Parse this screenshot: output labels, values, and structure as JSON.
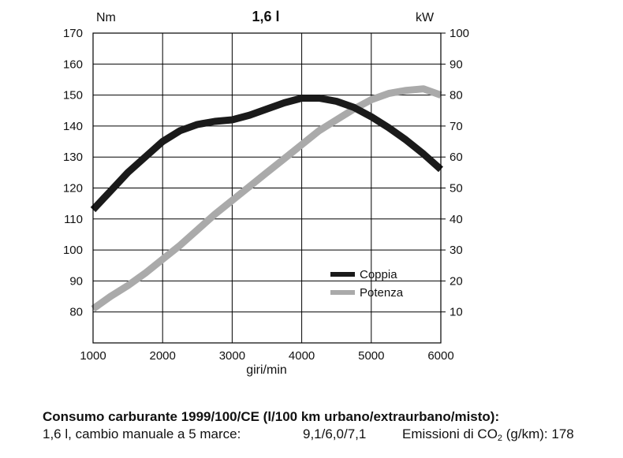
{
  "chart_data": {
    "type": "line",
    "title": "1,6 l",
    "xlabel": "giri/min",
    "ylabel_left": "Nm",
    "ylabel_right": "kW",
    "xlim": [
      1000,
      6000
    ],
    "ylim_left": [
      70,
      170
    ],
    "ylim_right": [
      0,
      100
    ],
    "x_ticks": [
      1000,
      2000,
      3000,
      4000,
      5000,
      6000
    ],
    "y_left_ticks": [
      80,
      90,
      100,
      110,
      120,
      130,
      140,
      150,
      160,
      170
    ],
    "y_right_ticks": [
      10,
      20,
      30,
      40,
      50,
      60,
      70,
      80,
      90,
      100
    ],
    "grid": true,
    "legend": "center-right",
    "series": [
      {
        "name": "Coppia",
        "axis": "left",
        "color": "#1a1a1a",
        "x": [
          1000,
          1250,
          1500,
          1750,
          2000,
          2250,
          2500,
          2750,
          3000,
          3250,
          3500,
          3750,
          4000,
          4250,
          4500,
          4750,
          5000,
          5250,
          5500,
          5750,
          6000
        ],
        "y": [
          113,
          119,
          125,
          130,
          135,
          138.5,
          140.5,
          141.5,
          142,
          143.5,
          145.5,
          147.5,
          149,
          149,
          148,
          146,
          143,
          139.5,
          135.5,
          131,
          126
        ]
      },
      {
        "name": "Potenza",
        "axis": "right",
        "color": "#aaaaaa",
        "x": [
          1000,
          1250,
          1500,
          1750,
          2000,
          2250,
          2500,
          2750,
          3000,
          3250,
          3500,
          3750,
          4000,
          4250,
          4500,
          4750,
          5000,
          5250,
          5500,
          5750,
          6000
        ],
        "y": [
          11,
          15,
          18.5,
          22.5,
          27,
          31.5,
          36.5,
          41.5,
          46,
          50.5,
          55,
          59.5,
          64,
          68.5,
          72,
          75.5,
          78.5,
          80.5,
          81.5,
          82,
          80
        ]
      }
    ]
  },
  "footer": {
    "heading": "Consumo carburante 1999/100/CE (l/100 km urbano/extraurbano/misto):",
    "spec": "1,6 l, cambio manuale a 5 marce:",
    "consumption": "9,1/6,0/7,1",
    "emissions_label": "Emissioni di CO",
    "emissions_sub": "2",
    "emissions_unit": " (g/km): 178"
  }
}
